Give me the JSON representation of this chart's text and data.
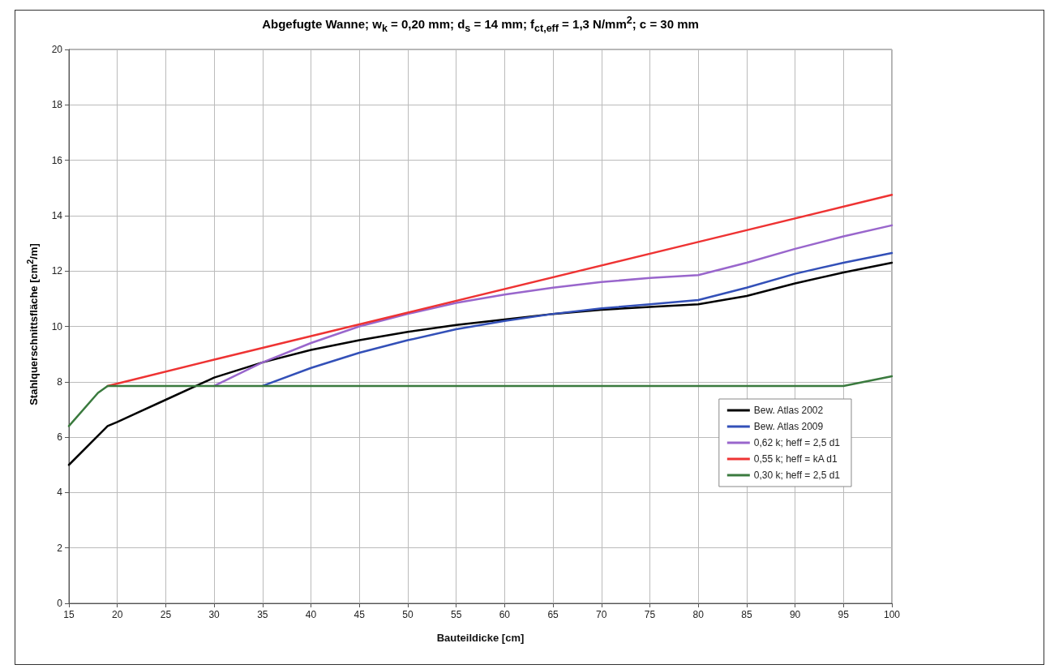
{
  "chart_data": {
    "type": "line",
    "title": "Abgefugte Wanne; w$_{k}$ = 0,20 mm; d$_{s}$ = 14 mm; f$_{ct,eff}$ = 1,3 N/mm$^{2}$; c = 30 mm",
    "xlabel": "Bauteildicke [cm]",
    "ylabel": "Stahlquerschnittsfläche [cm$^{2}$/m]",
    "xlim": [
      15,
      100
    ],
    "xticks": [
      15,
      20,
      25,
      30,
      35,
      40,
      45,
      50,
      55,
      60,
      65,
      70,
      75,
      80,
      85,
      90,
      95,
      100
    ],
    "ylim": [
      0,
      20
    ],
    "yticks": [
      0,
      2,
      4,
      6,
      8,
      10,
      12,
      14,
      16,
      18,
      20
    ],
    "grid": true,
    "legend": "right",
    "marker": "none",
    "series": [
      {
        "name": "Bew. Atlas 2002",
        "color": "#000000",
        "x": [
          15,
          19,
          20,
          25,
          30,
          35,
          40,
          45,
          50,
          55,
          60,
          65,
          70,
          75,
          80,
          85,
          90,
          95,
          100
        ],
        "values": [
          5.0,
          6.4,
          6.55,
          7.35,
          8.15,
          8.7,
          9.15,
          9.5,
          9.8,
          10.05,
          10.25,
          10.45,
          10.6,
          10.7,
          10.8,
          11.1,
          11.55,
          11.95,
          12.3
        ]
      },
      {
        "name": "Bew. Atlas 2009",
        "color": "#3350b8",
        "x": [
          35,
          40,
          45,
          50,
          55,
          60,
          65,
          70,
          75,
          80,
          85,
          90,
          95,
          100
        ],
        "values": [
          7.85,
          8.5,
          9.05,
          9.5,
          9.9,
          10.2,
          10.45,
          10.65,
          10.8,
          10.95,
          11.4,
          11.9,
          12.3,
          12.65
        ]
      },
      {
        "name": "0,62 k; heff = 2,5 d1",
        "color": "#9966cc",
        "x": [
          30,
          35,
          40,
          45,
          50,
          55,
          60,
          65,
          70,
          75,
          80,
          85,
          90,
          95,
          100
        ],
        "values": [
          7.85,
          8.7,
          9.4,
          10.0,
          10.45,
          10.85,
          11.15,
          11.4,
          11.6,
          11.75,
          11.85,
          12.3,
          12.8,
          13.25,
          13.65
        ]
      },
      {
        "name": "0,55 k; heff = kA d1",
        "color": "#ee3333",
        "x": [
          19,
          30,
          50,
          80,
          100
        ],
        "values": [
          7.85,
          8.8,
          10.5,
          13.05,
          14.75
        ]
      },
      {
        "name": "0,30 k; heff = 2,5 d1",
        "color": "#3a7a3e",
        "x": [
          15,
          18,
          19,
          95,
          100
        ],
        "values": [
          6.4,
          7.6,
          7.85,
          7.85,
          8.2
        ]
      }
    ]
  }
}
